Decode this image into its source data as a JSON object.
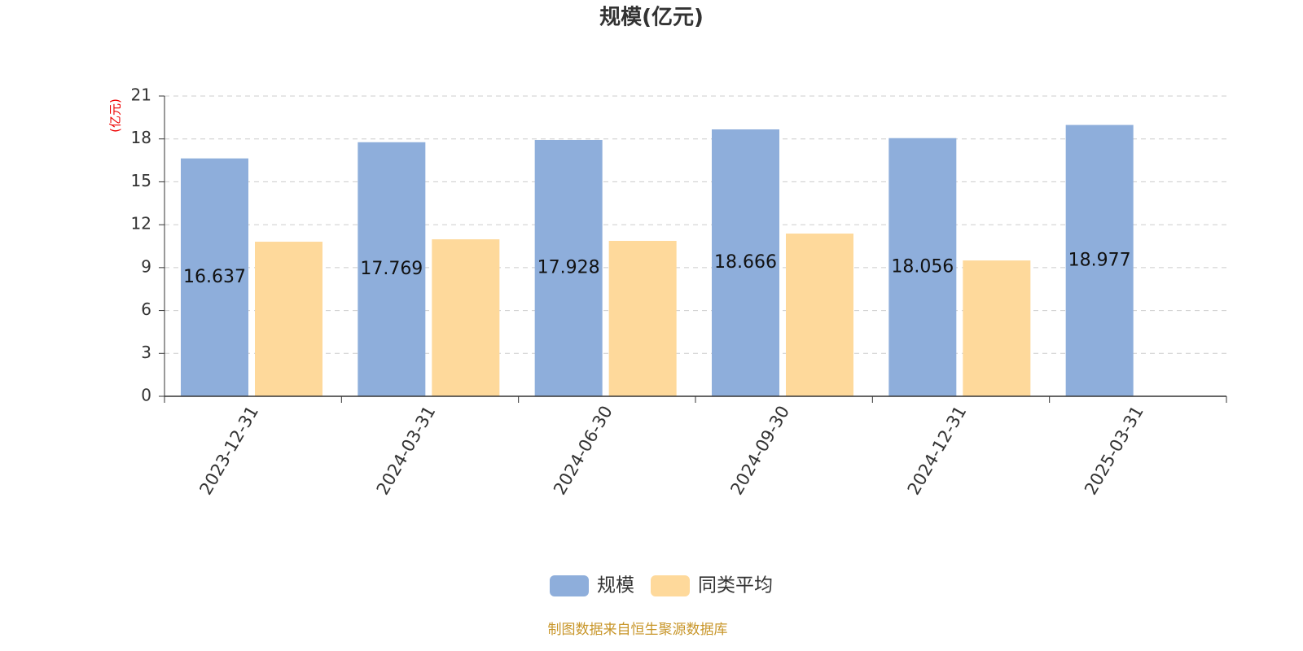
{
  "chart_data": {
    "type": "bar",
    "title": "规模(亿元)",
    "y_label": "(亿元)",
    "categories": [
      "2023-12-31",
      "2024-03-31",
      "2024-06-30",
      "2024-09-30",
      "2024-12-31",
      "2025-03-31"
    ],
    "series": [
      {
        "name": "规模",
        "color": "#8eaedb",
        "values": [
          16.637,
          17.769,
          17.928,
          18.666,
          18.056,
          18.977
        ]
      },
      {
        "name": "同类平均",
        "color": "#fed99b",
        "values": [
          10.81,
          10.98,
          10.87,
          11.38,
          9.5,
          null
        ]
      }
    ],
    "label_series": 0,
    "ylim": [
      0,
      21
    ],
    "yticks": [
      0,
      3,
      6,
      9,
      12,
      15,
      18,
      21
    ],
    "grid": true,
    "legend": "bottom",
    "source": "制图数据来自恒生聚源数据库"
  }
}
